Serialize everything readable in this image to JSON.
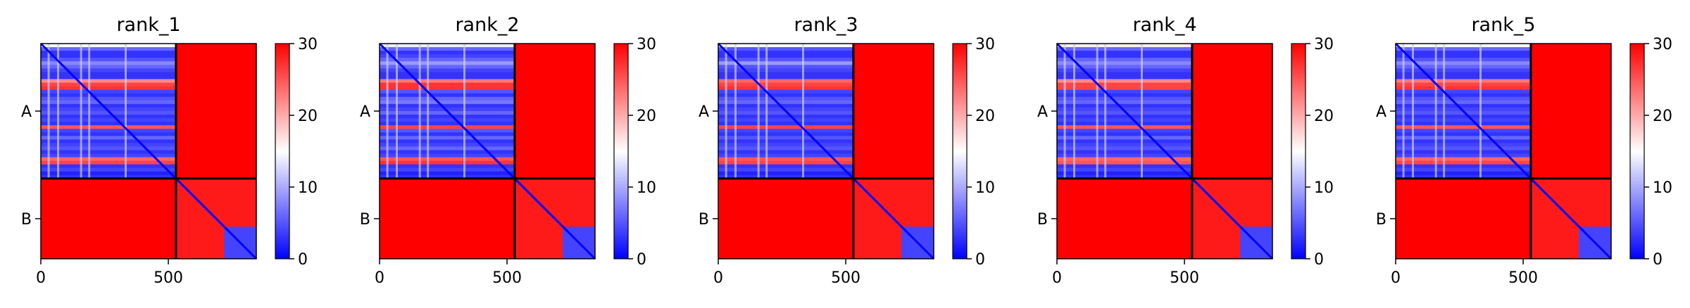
{
  "chart_data": [
    {
      "type": "heatmap",
      "title": "rank_1",
      "x_ticks": [
        0,
        500
      ],
      "y_ticks": [
        "A",
        "B"
      ],
      "chains": [
        {
          "name": "A",
          "start": 0,
          "end": 530
        },
        {
          "name": "B",
          "start": 530,
          "end": 845
        }
      ],
      "colorbar": {
        "min": 0,
        "max": 30,
        "ticks": [
          0,
          10,
          20,
          30
        ]
      },
      "row_pattern": [
        15,
        6,
        3,
        3,
        5,
        8,
        6,
        4,
        3,
        3,
        22,
        26,
        27,
        4,
        3,
        5,
        6,
        3,
        4,
        5,
        3,
        4,
        3,
        25,
        4,
        3,
        6,
        3,
        4,
        5,
        3,
        4,
        24,
        26,
        3,
        4,
        2,
        3
      ]
    },
    {
      "type": "heatmap",
      "title": "rank_2",
      "x_ticks": [
        0,
        500
      ],
      "y_ticks": [
        "A",
        "B"
      ],
      "chains": [
        {
          "name": "A",
          "start": 0,
          "end": 530
        },
        {
          "name": "B",
          "start": 530,
          "end": 845
        }
      ],
      "colorbar": {
        "min": 0,
        "max": 30,
        "ticks": [
          0,
          10,
          20,
          30
        ]
      },
      "row_pattern": [
        14,
        6,
        3,
        4,
        6,
        9,
        6,
        4,
        3,
        3,
        23,
        27,
        27,
        5,
        3,
        6,
        7,
        3,
        4,
        6,
        3,
        4,
        3,
        26,
        5,
        3,
        6,
        3,
        4,
        6,
        3,
        4,
        25,
        27,
        3,
        4,
        2,
        3
      ]
    },
    {
      "type": "heatmap",
      "title": "rank_3",
      "x_ticks": [
        0,
        500
      ],
      "y_ticks": [
        "A",
        "B"
      ],
      "chains": [
        {
          "name": "A",
          "start": 0,
          "end": 530
        },
        {
          "name": "B",
          "start": 530,
          "end": 845
        }
      ],
      "colorbar": {
        "min": 0,
        "max": 30,
        "ticks": [
          0,
          10,
          20,
          30
        ]
      },
      "row_pattern": [
        15,
        5,
        3,
        3,
        5,
        9,
        5,
        4,
        3,
        3,
        24,
        26,
        27,
        4,
        3,
        5,
        6,
        3,
        4,
        5,
        3,
        4,
        3,
        26,
        4,
        3,
        5,
        3,
        4,
        5,
        3,
        4,
        25,
        26,
        3,
        4,
        2,
        3
      ]
    },
    {
      "type": "heatmap",
      "title": "rank_4",
      "x_ticks": [
        0,
        500
      ],
      "y_ticks": [
        "A",
        "B"
      ],
      "chains": [
        {
          "name": "A",
          "start": 0,
          "end": 530
        },
        {
          "name": "B",
          "start": 530,
          "end": 845
        }
      ],
      "colorbar": {
        "min": 0,
        "max": 30,
        "ticks": [
          0,
          10,
          20,
          30
        ]
      },
      "row_pattern": [
        16,
        6,
        3,
        3,
        6,
        8,
        6,
        4,
        3,
        3,
        22,
        26,
        26,
        4,
        3,
        5,
        6,
        3,
        4,
        5,
        3,
        4,
        3,
        25,
        4,
        3,
        6,
        3,
        4,
        5,
        3,
        4,
        24,
        25,
        3,
        4,
        2,
        3
      ]
    },
    {
      "type": "heatmap",
      "title": "rank_5",
      "x_ticks": [
        0,
        500
      ],
      "y_ticks": [
        "A",
        "B"
      ],
      "chains": [
        {
          "name": "A",
          "start": 0,
          "end": 530
        },
        {
          "name": "B",
          "start": 530,
          "end": 845
        }
      ],
      "colorbar": {
        "min": 0,
        "max": 30,
        "ticks": [
          0,
          10,
          20,
          30
        ]
      },
      "row_pattern": [
        15,
        6,
        3,
        3,
        5,
        8,
        6,
        4,
        3,
        3,
        23,
        26,
        27,
        4,
        3,
        5,
        6,
        3,
        4,
        5,
        3,
        4,
        3,
        25,
        4,
        3,
        6,
        3,
        4,
        5,
        3,
        4,
        24,
        26,
        3,
        4,
        2,
        3
      ]
    }
  ],
  "colors": {
    "low": "#0000ff",
    "mid": "#ffffff",
    "high": "#ff0000",
    "chain_border": "#000000"
  }
}
